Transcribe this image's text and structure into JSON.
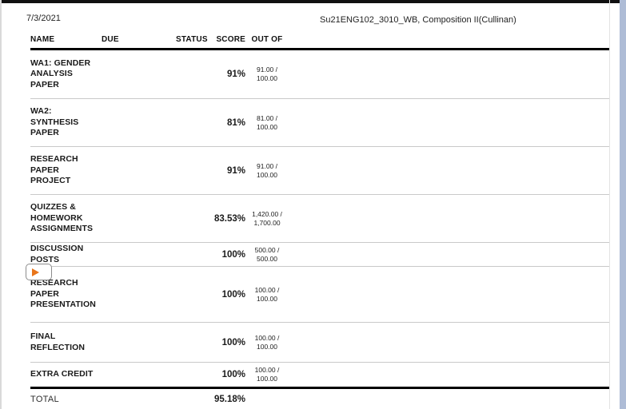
{
  "header": {
    "date": "7/3/2021",
    "course_title": "Su21ENG102_3010_WB, Composition II(Cullinan)"
  },
  "table": {
    "columns": {
      "name": "NAME",
      "due": "DUE",
      "status": "STATUS",
      "score": "SCORE",
      "out_of": "OUT OF"
    },
    "rows": [
      {
        "name": "WA1: GENDER ANALYSIS PAPER",
        "due": "",
        "status": "",
        "score": "91%",
        "out_of": "91.00 / 100.00"
      },
      {
        "name": "WA2: SYNTHESIS PAPER",
        "due": "",
        "status": "",
        "score": "81%",
        "out_of": "81.00 / 100.00"
      },
      {
        "name": "RESEARCH PAPER PROJECT",
        "due": "",
        "status": "",
        "score": "91%",
        "out_of": "91.00 / 100.00"
      },
      {
        "name": "QUIZZES & HOMEWORK ASSIGNMENTS",
        "due": "",
        "status": "",
        "score": "83.53%",
        "out_of": "1,420.00 / 1,700.00"
      },
      {
        "name": "DISCUSSION POSTS",
        "due": "",
        "status": "",
        "score": "100%",
        "out_of": "500.00 / 500.00"
      },
      {
        "name": "RESEARCH PAPER PRESENTATION",
        "due": "",
        "status": "",
        "score": "100%",
        "out_of": "100.00 / 100.00"
      },
      {
        "name": "FINAL REFLECTION",
        "due": "",
        "status": "",
        "score": "100%",
        "out_of": "100.00 / 100.00"
      },
      {
        "name": "EXTRA CREDIT",
        "due": "",
        "status": "",
        "score": "100%",
        "out_of": "100.00 / 100.00"
      }
    ],
    "total": {
      "label": "TOTAL",
      "score": "95.18%"
    }
  },
  "media_overlay": {
    "icon": "play-icon",
    "accent_color": "#e8751a"
  },
  "colors": {
    "top_bar": "#101010",
    "scrollbar_track": "#aebcd6",
    "row_separator": "#c9c9c9",
    "thick_rule": "#000000"
  }
}
